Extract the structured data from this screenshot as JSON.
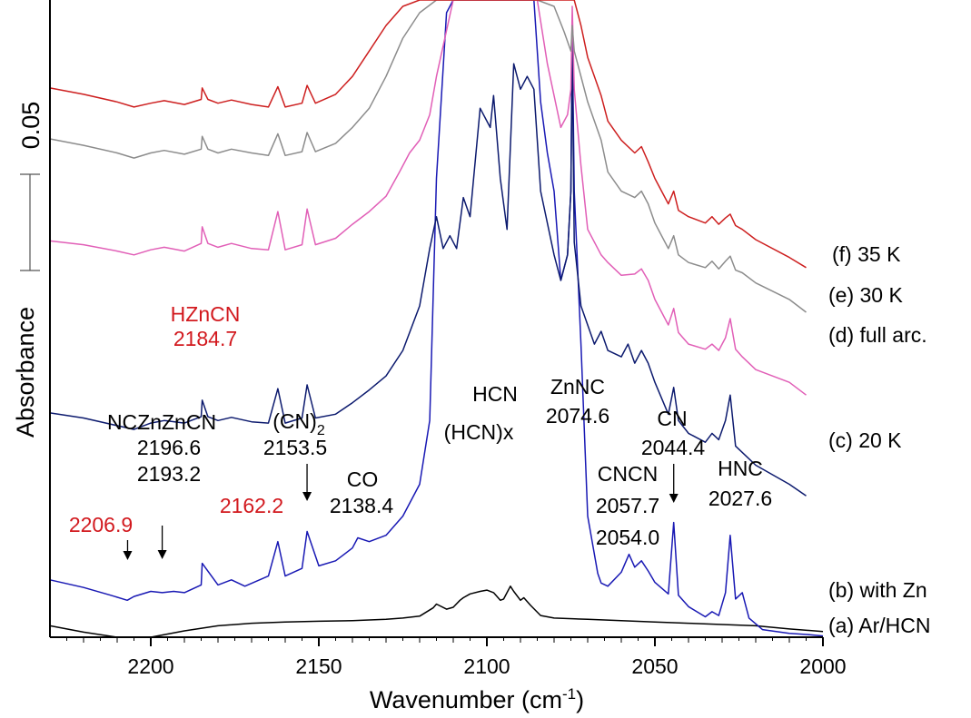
{
  "chart_data": {
    "type": "line",
    "xlabel": "Wavenumber (cm",
    "xlabel_sup": "-1",
    "xlabel_close": ")",
    "ylabel": "Absorbance",
    "scale_bar_label": "0.05",
    "xlim": [
      2230,
      2000
    ],
    "x_reversed": true,
    "x_ticks": [
      2200,
      2150,
      2100,
      2050,
      2000
    ],
    "x_tick_labels": [
      "2200",
      "2150",
      "2100",
      "2050",
      "2000"
    ],
    "ylim": [
      0,
      1
    ],
    "grid": false,
    "series": [
      {
        "name": "(a) Ar/HCN",
        "color": "#000000",
        "x": [
          2230,
          2220,
          2210,
          2206,
          2200,
          2190,
          2180,
          2170,
          2160,
          2150,
          2140,
          2130,
          2125,
          2120,
          2116,
          2115,
          2112,
          2110,
          2108,
          2107,
          2105,
          2102,
          2100,
          2098,
          2096,
          2095,
          2093,
          2092,
          2090,
          2089,
          2087,
          2084,
          2080,
          2070,
          2060,
          2050,
          2040,
          2030,
          2020,
          2010,
          2000
        ],
        "y": [
          0.018,
          0.008,
          -0.004,
          -0.006,
          -0.002,
          0.01,
          0.018,
          0.022,
          0.024,
          0.025,
          0.026,
          0.028,
          0.03,
          0.033,
          0.046,
          0.052,
          0.044,
          0.047,
          0.058,
          0.062,
          0.068,
          0.072,
          0.074,
          0.07,
          0.058,
          0.06,
          0.08,
          0.072,
          0.058,
          0.062,
          0.05,
          0.034,
          0.03,
          0.028,
          0.026,
          0.024,
          0.022,
          0.02,
          0.018,
          0.013,
          0.009
        ]
      },
      {
        "name": "(b) with Zn",
        "color": "#1919b4",
        "x": [
          2230,
          2220,
          2212,
          2207,
          2205,
          2200,
          2196.6,
          2193.2,
          2190,
          2185,
          2184.7,
          2180,
          2176,
          2172,
          2165,
          2162.2,
          2160,
          2155,
          2153.5,
          2150,
          2145,
          2140,
          2138.4,
          2135,
          2130,
          2125,
          2120,
          2117,
          2115,
          2112,
          2110,
          2108,
          2100,
          2094,
          2092,
          2090,
          2086,
          2084,
          2082,
          2080,
          2078,
          2076,
          2075,
          2074.6,
          2074,
          2072,
          2070,
          2067,
          2066,
          2064,
          2060,
          2057.7,
          2056,
          2054.0,
          2052,
          2050,
          2046,
          2044.4,
          2043,
          2040,
          2035,
          2033,
          2031,
          2029,
          2027.6,
          2026,
          2024,
          2022,
          2018,
          2010,
          2004,
          2000
        ],
        "y": [
          0.09,
          0.078,
          0.066,
          0.058,
          0.064,
          0.072,
          0.07,
          0.072,
          0.07,
          0.082,
          0.116,
          0.082,
          0.09,
          0.08,
          0.096,
          0.15,
          0.096,
          0.108,
          0.166,
          0.112,
          0.12,
          0.14,
          0.156,
          0.15,
          0.16,
          0.19,
          0.24,
          0.34,
          0.72,
          0.98,
          1.0,
          1.0,
          1.0,
          1.0,
          1.0,
          1.0,
          1.0,
          0.84,
          0.76,
          0.7,
          0.56,
          0.6,
          0.7,
          0.95,
          0.7,
          0.46,
          0.19,
          0.1,
          0.085,
          0.08,
          0.102,
          0.13,
          0.11,
          0.12,
          0.104,
          0.086,
          0.068,
          0.18,
          0.066,
          0.048,
          0.032,
          0.04,
          0.034,
          0.07,
          0.16,
          0.06,
          0.07,
          0.03,
          0.012,
          0.006,
          0.004,
          0.002
        ]
      },
      {
        "name": "(c) 20 K",
        "color": "#0c1a6e",
        "x": [
          2230,
          2220,
          2210,
          2205,
          2200,
          2196,
          2190,
          2185,
          2184.7,
          2183,
          2180,
          2176,
          2170,
          2165,
          2162.2,
          2160,
          2155,
          2153.5,
          2151,
          2145,
          2140,
          2135,
          2130,
          2125,
          2120,
          2117,
          2115,
          2113,
          2111,
          2109,
          2107,
          2105,
          2102,
          2099,
          2098,
          2096,
          2094,
          2092,
          2090,
          2088,
          2086,
          2084,
          2080,
          2078,
          2076,
          2075,
          2074.6,
          2074,
          2072,
          2068,
          2066,
          2064,
          2060,
          2058,
          2056,
          2054,
          2052,
          2050,
          2046,
          2044.4,
          2043,
          2040,
          2035,
          2033,
          2031,
          2029,
          2027.6,
          2026,
          2024,
          2020,
          2010,
          2005
        ],
        "y": [
          0.352,
          0.344,
          0.332,
          0.326,
          0.336,
          0.34,
          0.336,
          0.346,
          0.372,
          0.346,
          0.34,
          0.345,
          0.338,
          0.336,
          0.39,
          0.336,
          0.344,
          0.396,
          0.344,
          0.35,
          0.368,
          0.388,
          0.41,
          0.45,
          0.52,
          0.61,
          0.66,
          0.61,
          0.63,
          0.61,
          0.69,
          0.66,
          0.83,
          0.8,
          0.85,
          0.72,
          0.64,
          0.9,
          0.86,
          0.88,
          0.86,
          0.7,
          0.6,
          0.56,
          0.6,
          0.7,
          0.92,
          0.62,
          0.52,
          0.46,
          0.48,
          0.45,
          0.44,
          0.46,
          0.43,
          0.45,
          0.43,
          0.4,
          0.35,
          0.392,
          0.34,
          0.32,
          0.306,
          0.32,
          0.31,
          0.34,
          0.38,
          0.3,
          0.29,
          0.27,
          0.24,
          0.222
        ]
      },
      {
        "name": "(d) full arc.",
        "color": "#e15fb7",
        "x": [
          2230,
          2220,
          2210,
          2205,
          2200,
          2196,
          2190,
          2185,
          2184.7,
          2183,
          2180,
          2176,
          2170,
          2165,
          2162.2,
          2160,
          2155,
          2153.5,
          2151,
          2145,
          2140,
          2135,
          2130,
          2126,
          2123,
          2120,
          2117,
          2115,
          2110,
          2105,
          2100,
          2090,
          2085,
          2082,
          2080,
          2078,
          2076,
          2075,
          2074.6,
          2074,
          2072,
          2070,
          2066,
          2064,
          2060,
          2056,
          2054,
          2052,
          2050,
          2046,
          2044.4,
          2043,
          2040,
          2035,
          2033,
          2031,
          2029,
          2027.6,
          2026,
          2024,
          2020,
          2010,
          2005
        ],
        "y": [
          0.622,
          0.616,
          0.606,
          0.6,
          0.608,
          0.612,
          0.606,
          0.618,
          0.644,
          0.618,
          0.612,
          0.618,
          0.61,
          0.608,
          0.668,
          0.608,
          0.616,
          0.672,
          0.616,
          0.626,
          0.648,
          0.668,
          0.692,
          0.73,
          0.76,
          0.78,
          0.82,
          0.88,
          1.0,
          1.0,
          1.0,
          1.0,
          1.0,
          0.9,
          0.85,
          0.8,
          0.82,
          0.86,
          0.99,
          0.86,
          0.74,
          0.64,
          0.6,
          0.588,
          0.568,
          0.57,
          0.578,
          0.56,
          0.53,
          0.49,
          0.516,
          0.478,
          0.46,
          0.452,
          0.46,
          0.45,
          0.47,
          0.5,
          0.452,
          0.44,
          0.42,
          0.4,
          0.38
        ]
      },
      {
        "name": "(e) 30 K",
        "color": "#8c8c8c",
        "x": [
          2230,
          2220,
          2210,
          2205,
          2200,
          2196,
          2190,
          2185,
          2184.7,
          2183,
          2180,
          2176,
          2170,
          2165,
          2162.2,
          2160,
          2155,
          2153.5,
          2151,
          2145,
          2140,
          2135,
          2130,
          2125,
          2120,
          2115,
          2112,
          2110,
          2105,
          2100,
          2090,
          2085,
          2080,
          2077,
          2075,
          2074.6,
          2074,
          2072,
          2070,
          2066,
          2064,
          2060,
          2056,
          2054,
          2052,
          2050,
          2046,
          2044.4,
          2043,
          2040,
          2035,
          2033,
          2031,
          2029,
          2027.6,
          2026,
          2024,
          2020,
          2010,
          2005
        ],
        "y": [
          0.782,
          0.772,
          0.76,
          0.752,
          0.76,
          0.764,
          0.758,
          0.766,
          0.786,
          0.766,
          0.76,
          0.766,
          0.76,
          0.756,
          0.79,
          0.756,
          0.762,
          0.792,
          0.762,
          0.775,
          0.8,
          0.83,
          0.88,
          0.94,
          0.98,
          1.0,
          1.0,
          1.0,
          1.0,
          1.0,
          1.0,
          1.0,
          0.99,
          0.95,
          0.92,
          0.96,
          0.92,
          0.88,
          0.84,
          0.78,
          0.73,
          0.7,
          0.69,
          0.7,
          0.68,
          0.65,
          0.61,
          0.63,
          0.6,
          0.588,
          0.58,
          0.59,
          0.578,
          0.59,
          0.598,
          0.576,
          0.572,
          0.556,
          0.53,
          0.51
        ]
      },
      {
        "name": "(f) 35 K",
        "color": "#cd1f1f",
        "x": [
          2230,
          2220,
          2210,
          2205,
          2200,
          2196,
          2190,
          2185,
          2184.7,
          2183,
          2180,
          2176,
          2170,
          2165,
          2162.2,
          2160,
          2155,
          2153.5,
          2151,
          2145,
          2140,
          2135,
          2130,
          2125,
          2120,
          2115,
          2112,
          2110,
          2105,
          2100,
          2090,
          2085,
          2080,
          2077,
          2075,
          2074.6,
          2074,
          2072,
          2070,
          2066,
          2064,
          2060,
          2056,
          2054,
          2052,
          2050,
          2046,
          2044.4,
          2043,
          2040,
          2035,
          2033,
          2031,
          2029,
          2027.6,
          2026,
          2024,
          2020,
          2010,
          2005
        ],
        "y": [
          0.862,
          0.852,
          0.84,
          0.832,
          0.838,
          0.842,
          0.836,
          0.844,
          0.862,
          0.844,
          0.838,
          0.843,
          0.836,
          0.832,
          0.864,
          0.832,
          0.838,
          0.866,
          0.838,
          0.852,
          0.88,
          0.92,
          0.96,
          0.99,
          1.0,
          1.0,
          1.0,
          1.0,
          1.0,
          1.0,
          1.0,
          1.0,
          1.0,
          1.0,
          1.0,
          1.0,
          1.0,
          0.96,
          0.91,
          0.85,
          0.81,
          0.78,
          0.76,
          0.77,
          0.746,
          0.72,
          0.68,
          0.7,
          0.67,
          0.66,
          0.65,
          0.66,
          0.648,
          0.658,
          0.664,
          0.646,
          0.64,
          0.624,
          0.596,
          0.58
        ]
      }
    ],
    "annotations": [
      {
        "id": "hzncn-name",
        "text": "HZnCN",
        "color": "#d2191e"
      },
      {
        "id": "hzncn-value",
        "text": "2184.7",
        "color": "#d2191e"
      },
      {
        "id": "nczn-name",
        "text": "NCZnZnCN",
        "color": "#000000"
      },
      {
        "id": "nczn-v1",
        "text": "2196.6",
        "color": "#000000"
      },
      {
        "id": "nczn-v2",
        "text": "2193.2",
        "color": "#000000"
      },
      {
        "id": "cn2-name",
        "text": "(CN)",
        "sub": "2",
        "color": "#000000"
      },
      {
        "id": "cn2-value",
        "text": "2153.5",
        "color": "#000000"
      },
      {
        "id": "co-name",
        "text": "CO",
        "color": "#000000"
      },
      {
        "id": "co-value",
        "text": "2138.4",
        "color": "#000000"
      },
      {
        "id": "peak-2206",
        "text": "2206.9",
        "color": "#d2191e"
      },
      {
        "id": "peak-2162",
        "text": "2162.2",
        "color": "#d2191e"
      },
      {
        "id": "hcn-name",
        "text": "HCN",
        "color": "#000000"
      },
      {
        "id": "hcnx-name",
        "text": "(HCN)x",
        "color": "#000000"
      },
      {
        "id": "znnc-name",
        "text": "ZnNC",
        "color": "#000000"
      },
      {
        "id": "znnc-value",
        "text": "2074.6",
        "color": "#000000"
      },
      {
        "id": "cn-name",
        "text": "CN",
        "color": "#000000"
      },
      {
        "id": "cn-value",
        "text": "2044.4",
        "color": "#000000"
      },
      {
        "id": "cncn-name",
        "text": "CNCN",
        "color": "#000000"
      },
      {
        "id": "cncn-v1",
        "text": "2057.7",
        "color": "#000000"
      },
      {
        "id": "cncn-v2",
        "text": "2054.0",
        "color": "#000000"
      },
      {
        "id": "hnc-name",
        "text": "HNC",
        "color": "#000000"
      },
      {
        "id": "hnc-value",
        "text": "2027.6",
        "color": "#000000"
      }
    ],
    "arrows": [
      {
        "at": 2206.9
      },
      {
        "at": 2196.6
      },
      {
        "at": 2153.5
      },
      {
        "at": 2044.4
      }
    ]
  }
}
